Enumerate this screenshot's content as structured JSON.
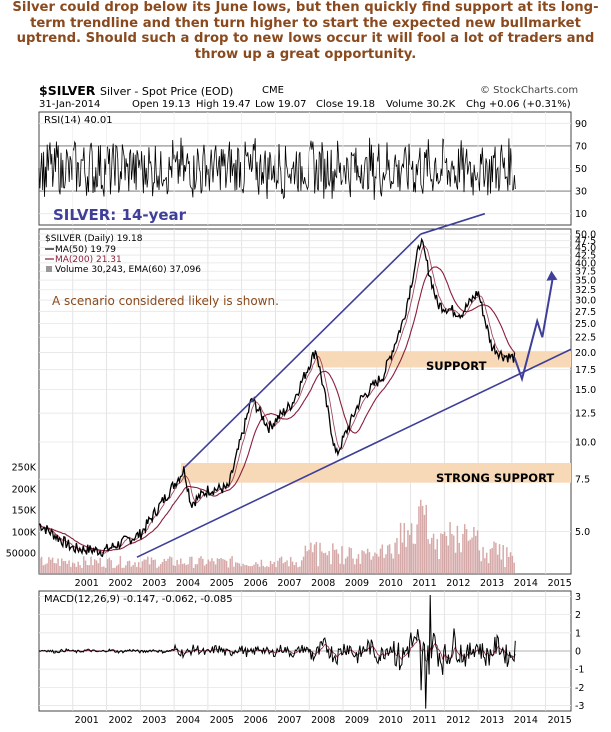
{
  "headline": "Silver could drop below its June lows, but then quickly find support at its long-term trendline and then turn higher to start the expected new bullmarket uptrend. Should such a drop to new lows occur it will fool a lot of traders and throw up a great opportunity.",
  "header": {
    "symbol": "$SILVER",
    "description": "Silver - Spot Price (EOD)",
    "exchange": "CME",
    "brand": "© StockCharts.com",
    "date": "31-Jan-2014",
    "open": "Open 19.13",
    "high": "High 19.47",
    "low": "Low 19.07",
    "close": "Close 19.18",
    "volume": "Volume 30.2K",
    "chg": "Chg +0.06 (+0.31%)"
  },
  "chart_data": {
    "type": "line",
    "title": "SILVER: 14-year",
    "x_ticks": [
      "2001",
      "2002",
      "2003",
      "2004",
      "2005",
      "2006",
      "2007",
      "2008",
      "2009",
      "2010",
      "2011",
      "2012",
      "2013",
      "2014",
      "2015"
    ],
    "rsi": {
      "legend": "RSI(14) 40.01",
      "y_ticks": [
        "90",
        "70",
        "50",
        "30",
        "10"
      ],
      "ylim": [
        0,
        100
      ]
    },
    "price": {
      "legend_symbol": "$SILVER (Daily) 19.18",
      "legend_ma50": "MA(50) 19.79",
      "legend_ma200": "MA(200) 21.31",
      "legend_volume": "Volume 30,243, EMA(60) 37,096",
      "y_ticks": [
        "50.0",
        "47.5",
        "45.0",
        "42.5",
        "40.0",
        "37.5",
        "35.0",
        "32.5",
        "30.0",
        "27.5",
        "25.0",
        "22.5",
        "20.0",
        "17.5",
        "15.0",
        "12.5",
        "10.0",
        "7.5",
        "5.0"
      ],
      "volume_ticks": [
        "250K",
        "200K",
        "150K",
        "100K",
        "50000"
      ],
      "x": [
        2000.0,
        2001.0,
        2001.9,
        2003.0,
        2004.3,
        2004.5,
        2005.0,
        2005.6,
        2006.3,
        2006.8,
        2007.5,
        2008.2,
        2008.8,
        2009.5,
        2010.2,
        2010.8,
        2011.3,
        2011.8,
        2012.5,
        2013.0,
        2013.4,
        2013.75,
        2014.08
      ],
      "close": [
        5.3,
        4.4,
        4.3,
        4.9,
        8.1,
        6.2,
        6.9,
        7.0,
        14.0,
        11.2,
        13.5,
        20.5,
        9.0,
        13.8,
        16.8,
        26.0,
        48.0,
        29.0,
        27.0,
        32.0,
        21.0,
        19.5,
        19.18
      ],
      "annotations": {
        "scenario": "A scenario considered likely is shown.",
        "support": "SUPPORT",
        "strong_support": "STRONG SUPPORT"
      }
    },
    "macd": {
      "legend": "MACD(12,26,9) -0.147, -0.062, -0.085",
      "y_ticks": [
        "3",
        "2",
        "1",
        "0",
        "-1",
        "-2",
        "-3"
      ],
      "ylim": [
        -3,
        3
      ]
    }
  },
  "colors": {
    "headline": "#8a4a1e",
    "trendline": "#3f3f9a",
    "support_band": "#f7d9b8",
    "ma50": "#000000",
    "ma200": "#8a1f3a",
    "volume": "#c98d8d"
  }
}
